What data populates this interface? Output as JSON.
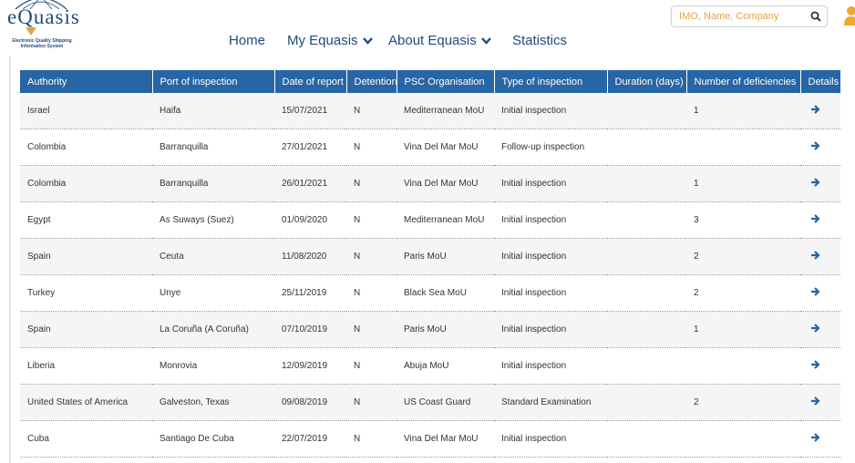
{
  "logo": {
    "word": "eQuasis",
    "tagline_line1": "Electronic Quality Shipping",
    "tagline_line2": "Information System"
  },
  "nav": {
    "home": "Home",
    "my_equasis": "My Equasis",
    "about": "About Equasis",
    "statistics": "Statistics"
  },
  "search": {
    "placeholder": "IMO, Name, Company",
    "icon": "search-icon"
  },
  "colors": {
    "header_bg": "#2765a5",
    "nav_text": "#1f4a7c",
    "accent": "#e6a23c"
  },
  "table": {
    "headers": [
      "Authority",
      "Port of inspection",
      "Date of report",
      "Detention",
      "PSC Organisation",
      "Type of inspection",
      "Duration (days)",
      "Number of deficiencies",
      "Details"
    ],
    "rows": [
      {
        "authority": "Israel",
        "port": "Haifa",
        "date": "15/07/2021",
        "detention": "N",
        "psc": "Mediterranean MoU",
        "type": "Initial inspection",
        "duration": "",
        "deficiencies": "1"
      },
      {
        "authority": "Colombia",
        "port": "Barranquilla",
        "date": "27/01/2021",
        "detention": "N",
        "psc": "Vina Del Mar MoU",
        "type": "Follow-up inspection",
        "duration": "",
        "deficiencies": ""
      },
      {
        "authority": "Colombia",
        "port": "Barranquilla",
        "date": "26/01/2021",
        "detention": "N",
        "psc": "Vina Del Mar MoU",
        "type": "Initial inspection",
        "duration": "",
        "deficiencies": "1"
      },
      {
        "authority": "Egypt",
        "port": "As Suways (Suez)",
        "date": "01/09/2020",
        "detention": "N",
        "psc": "Mediterranean MoU",
        "type": "Initial inspection",
        "duration": "",
        "deficiencies": "3"
      },
      {
        "authority": "Spain",
        "port": "Ceuta",
        "date": "11/08/2020",
        "detention": "N",
        "psc": "Paris MoU",
        "type": "Initial inspection",
        "duration": "",
        "deficiencies": "2"
      },
      {
        "authority": "Turkey",
        "port": "Unye",
        "date": "25/11/2019",
        "detention": "N",
        "psc": "Black Sea MoU",
        "type": "Initial inspection",
        "duration": "",
        "deficiencies": "2"
      },
      {
        "authority": "Spain",
        "port": "La Coruña (A Coruña)",
        "date": "07/10/2019",
        "detention": "N",
        "psc": "Paris MoU",
        "type": "Initial inspection",
        "duration": "",
        "deficiencies": "1"
      },
      {
        "authority": "Liberia",
        "port": "Monrovia",
        "date": "12/09/2019",
        "detention": "N",
        "psc": "Abuja MoU",
        "type": "Initial inspection",
        "duration": "",
        "deficiencies": ""
      },
      {
        "authority": "United States of America",
        "port": "Galveston, Texas",
        "date": "09/08/2019",
        "detention": "N",
        "psc": "US Coast Guard",
        "type": "Standard Examination",
        "duration": "",
        "deficiencies": "2"
      },
      {
        "authority": "Cuba",
        "port": "Santiago De Cuba",
        "date": "22/07/2019",
        "detention": "N",
        "psc": "Vina Del Mar MoU",
        "type": "Initial inspection",
        "duration": "",
        "deficiencies": ""
      }
    ]
  }
}
